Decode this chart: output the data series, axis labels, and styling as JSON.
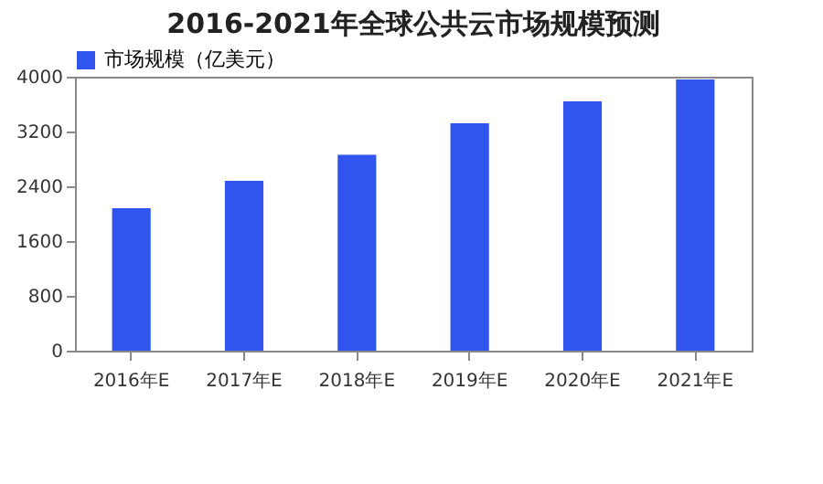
{
  "chart_data": {
    "type": "bar",
    "title": "2016-2021年全球公共云市场规模预测",
    "categories": [
      "2016年E",
      "2017年E",
      "2018年E",
      "2019年E",
      "2020年E",
      "2021年E"
    ],
    "series": [
      {
        "name": "市场规模（亿美元）",
        "color": "#2f55ee",
        "values": [
          2080,
          2480,
          2860,
          3320,
          3640,
          3960
        ]
      }
    ],
    "ylim": [
      0,
      4000
    ],
    "yticks": [
      0,
      800,
      1600,
      2400,
      3200,
      4000
    ],
    "legend": "top"
  }
}
